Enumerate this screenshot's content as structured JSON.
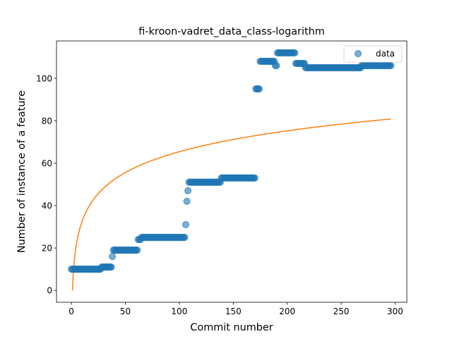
{
  "chart_data": {
    "type": "scatter",
    "title": "fi-kroon-vadret_data_class-logarithm",
    "xlabel": "Commit number",
    "ylabel": "Number of instance of a feature",
    "xlim": [
      -13.8,
      310.8
    ],
    "ylim": [
      -5.6,
      117.6
    ],
    "xticks": [
      0,
      50,
      100,
      150,
      200,
      250,
      300
    ],
    "yticks": [
      0,
      20,
      40,
      60,
      80,
      100
    ],
    "grid": false,
    "legend": {
      "position": "top-right",
      "entries": [
        "data"
      ]
    },
    "colors": {
      "data": "#1f77b4",
      "fit": "#ff7f0e"
    },
    "series": [
      {
        "name": "data",
        "type": "scatter",
        "segments": [
          {
            "x_start": 0,
            "x_end": 27,
            "y": 10
          },
          {
            "x_start": 28,
            "x_end": 37,
            "y": 11
          },
          {
            "x_start": 38,
            "x_end": 38,
            "y": 16
          },
          {
            "x_start": 39,
            "x_end": 61,
            "y": 19
          },
          {
            "x_start": 62,
            "x_end": 64,
            "y": 24
          },
          {
            "x_start": 65,
            "x_end": 105,
            "y": 25
          },
          {
            "x_start": 106,
            "x_end": 106,
            "y": 31
          },
          {
            "x_start": 107,
            "x_end": 107,
            "y": 42
          },
          {
            "x_start": 108,
            "x_end": 108,
            "y": 47
          },
          {
            "x_start": 109,
            "x_end": 138,
            "y": 51
          },
          {
            "x_start": 139,
            "x_end": 170,
            "y": 53
          },
          {
            "x_start": 171,
            "x_end": 174,
            "y": 95
          },
          {
            "x_start": 175,
            "x_end": 188,
            "y": 108
          },
          {
            "x_start": 189,
            "x_end": 190,
            "y": 106
          },
          {
            "x_start": 191,
            "x_end": 207,
            "y": 112
          },
          {
            "x_start": 208,
            "x_end": 216,
            "y": 107
          },
          {
            "x_start": 217,
            "x_end": 268,
            "y": 105
          },
          {
            "x_start": 269,
            "x_end": 296,
            "y": 106
          }
        ]
      },
      {
        "type": "line",
        "function": "logarithm",
        "coefficients": {
          "a": 14.2,
          "b": 0
        },
        "x_range": [
          1,
          296
        ]
      }
    ]
  }
}
